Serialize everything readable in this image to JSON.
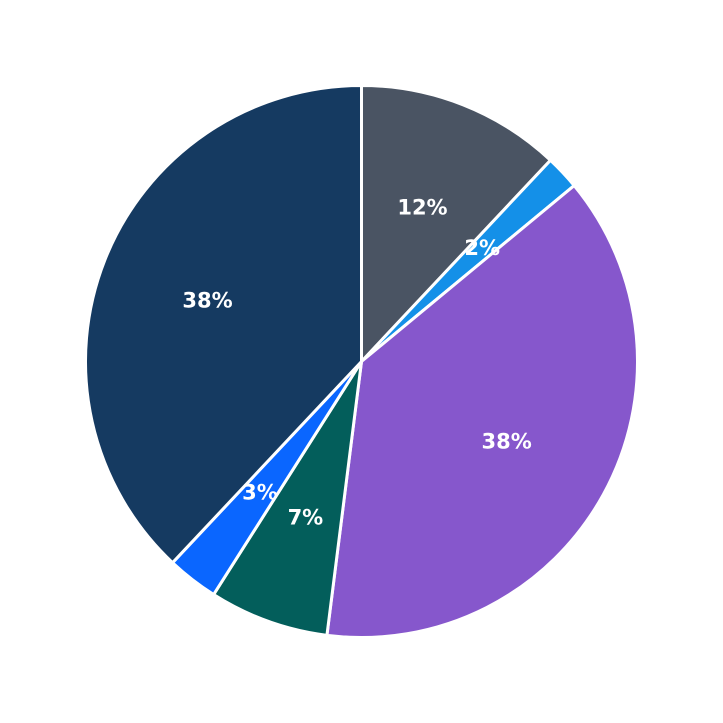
{
  "chart_data": {
    "type": "pie",
    "start_angle_deg": 90,
    "direction": "clockwise",
    "slices": [
      {
        "label": "12%",
        "value": 12,
        "color": "#4a5463"
      },
      {
        "label": "2%",
        "value": 2,
        "color": "#1490e8"
      },
      {
        "label": "38%",
        "value": 38,
        "color": "#8657cc"
      },
      {
        "label": "7%",
        "value": 7,
        "color": "#035e5b"
      },
      {
        "label": "3%",
        "value": 3,
        "color": "#0a66ff"
      },
      {
        "label": "38%",
        "value": 38,
        "color": "#153a61"
      }
    ]
  }
}
